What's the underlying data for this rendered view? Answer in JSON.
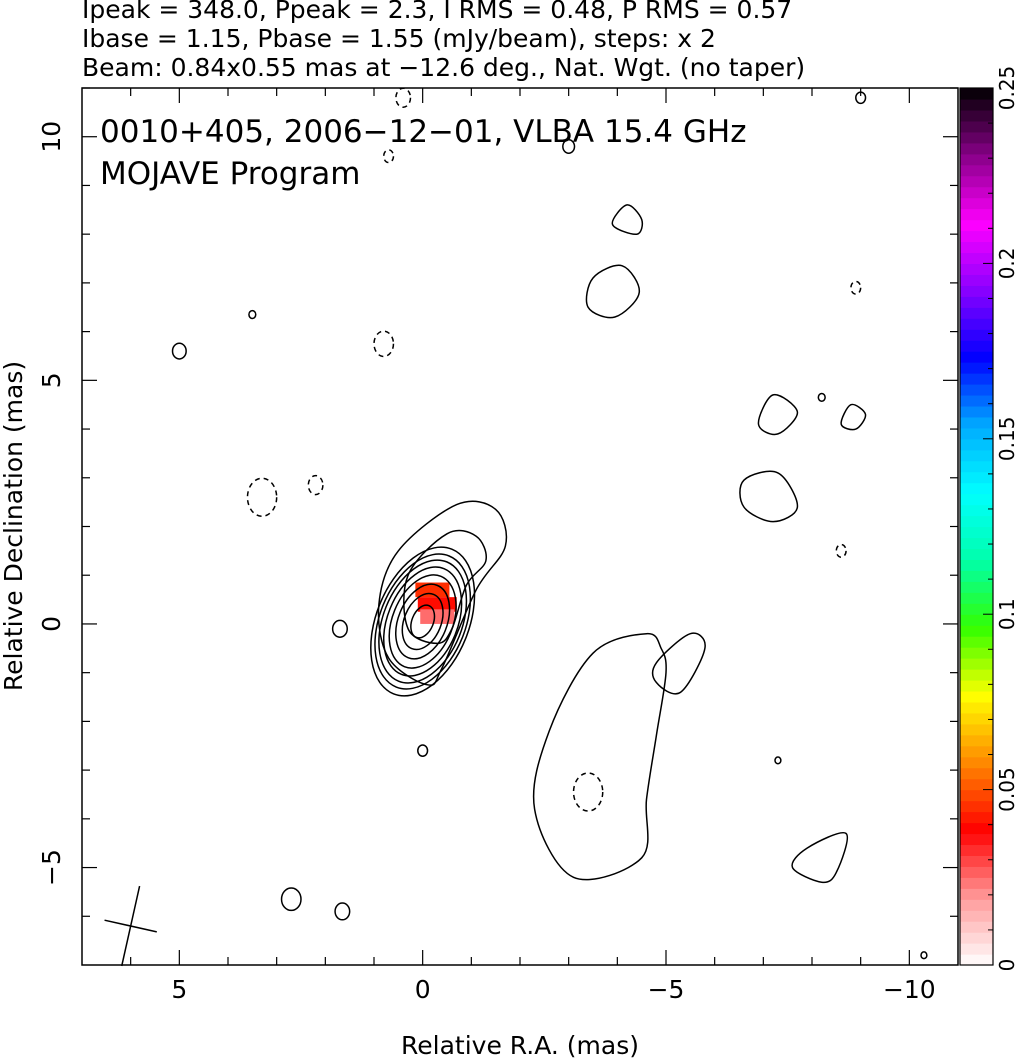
{
  "header": {
    "line1": "Ipeak = 348.0, Ppeak = 2.3, I RMS = 0.48, P RMS = 0.57",
    "line2": "Ibase = 1.15, Pbase = 1.55 (mJy/beam), steps: x 2",
    "line3": "Beam: 0.84x0.55 mas at −12.6 deg., Nat. Wgt. (no taper)"
  },
  "inset": {
    "line1": "0010+405, 2006−12−01, VLBA 15.4 GHz",
    "line2": "MOJAVE Program"
  },
  "chart_data": {
    "type": "contour",
    "xlabel": "Relative R.A. (mas)",
    "ylabel": "Relative Declination (mas)",
    "xlim": [
      7,
      -11
    ],
    "ylim": [
      -7,
      11
    ],
    "x_major_ticks": [
      {
        "value": 5,
        "label": "5"
      },
      {
        "value": 0,
        "label": "0"
      },
      {
        "value": -5,
        "label": "−5"
      },
      {
        "value": -10,
        "label": "−10"
      }
    ],
    "y_major_ticks": [
      {
        "value": 10,
        "label": "10"
      },
      {
        "value": 5,
        "label": "5"
      },
      {
        "value": 0,
        "label": "0"
      },
      {
        "value": -5,
        "label": "−5"
      }
    ],
    "colorbar": {
      "range": [
        0,
        0.25
      ],
      "ticks": [
        {
          "value": 0,
          "label": "0"
        },
        {
          "value": 0.05,
          "label": "0.05"
        },
        {
          "value": 0.1,
          "label": "0.1"
        },
        {
          "value": 0.15,
          "label": "0.15"
        },
        {
          "value": 0.2,
          "label": "0.2"
        },
        {
          "value": 0.25,
          "label": "0.25"
        }
      ],
      "colors": [
        "#ffffff",
        "#ff9a9a",
        "#ff0000",
        "#ff8800",
        "#ffff00",
        "#33ff00",
        "#00ffaa",
        "#00ffff",
        "#00aaff",
        "#0000ff",
        "#8800ff",
        "#ff00ff",
        "#880088",
        "#000000"
      ]
    },
    "core_contours": [
      {
        "rx": 0.22,
        "ry": 0.35
      },
      {
        "rx": 0.38,
        "ry": 0.6
      },
      {
        "rx": 0.5,
        "ry": 0.8
      },
      {
        "rx": 0.62,
        "ry": 1.0
      },
      {
        "rx": 0.72,
        "ry": 1.17
      },
      {
        "rx": 0.81,
        "ry": 1.32
      },
      {
        "rx": 0.88,
        "ry": 1.45
      },
      {
        "rx": 0.95,
        "ry": 1.6
      }
    ],
    "extended_contours": [
      [
        [
          -0.1,
          -1.25
        ],
        [
          0.7,
          -0.7
        ],
        [
          0.9,
          0.4
        ],
        [
          0.5,
          1.5
        ],
        [
          -0.7,
          2.45
        ],
        [
          -1.5,
          2.35
        ],
        [
          -1.7,
          1.6
        ],
        [
          -1.1,
          0.7
        ],
        [
          -0.4,
          -0.9
        ]
      ],
      [
        [
          -0.3,
          -0.4
        ],
        [
          0.3,
          -0.1
        ],
        [
          0.3,
          1.0
        ],
        [
          -0.5,
          1.85
        ],
        [
          -1.1,
          1.8
        ],
        [
          -1.3,
          1.3
        ],
        [
          -0.9,
          0.8
        ],
        [
          -0.6,
          -0.1
        ]
      ],
      [
        [
          -4.8,
          -2.3
        ],
        [
          -5.0,
          -1.0
        ],
        [
          -4.9,
          -0.5
        ],
        [
          -4.6,
          -0.2
        ],
        [
          -3.5,
          -0.6
        ],
        [
          -2.6,
          -2.2
        ],
        [
          -2.3,
          -3.8
        ],
        [
          -3.1,
          -5.2
        ],
        [
          -4.5,
          -4.8
        ],
        [
          -4.6,
          -3.6
        ]
      ],
      [
        [
          -5.3,
          -1.4
        ],
        [
          -5.8,
          -0.5
        ],
        [
          -5.5,
          -0.2
        ],
        [
          -4.8,
          -0.8
        ],
        [
          -4.8,
          -1.2
        ]
      ],
      [
        [
          -3.95,
          6.3
        ],
        [
          -4.45,
          6.8
        ],
        [
          -4.1,
          7.35
        ],
        [
          -3.5,
          7.1
        ],
        [
          -3.4,
          6.5
        ]
      ],
      [
        [
          -4.4,
          8.0
        ],
        [
          -4.5,
          8.3
        ],
        [
          -4.2,
          8.6
        ],
        [
          -3.9,
          8.2
        ]
      ],
      [
        [
          -7.7,
          2.4
        ],
        [
          -7.2,
          2.1
        ],
        [
          -6.6,
          2.4
        ],
        [
          -6.6,
          2.95
        ],
        [
          -7.3,
          3.1
        ]
      ],
      [
        [
          -7.7,
          4.35
        ],
        [
          -7.2,
          4.7
        ],
        [
          -6.9,
          4.1
        ],
        [
          -7.3,
          3.9
        ]
      ],
      [
        [
          -8.6,
          4.1
        ],
        [
          -8.9,
          4.0
        ],
        [
          -9.1,
          4.3
        ],
        [
          -8.8,
          4.5
        ]
      ],
      [
        [
          -8.5,
          -5.1
        ],
        [
          -8.2,
          -5.3
        ],
        [
          -7.6,
          -5.0
        ],
        [
          -7.9,
          -4.6
        ],
        [
          -8.7,
          -4.3
        ]
      ]
    ],
    "small_contours": [
      {
        "x": 5.0,
        "y": 5.6,
        "r": 0.14
      },
      {
        "x": 3.5,
        "y": 6.35,
        "r": 0.07
      },
      {
        "x": 1.7,
        "y": -0.1,
        "r": 0.15
      },
      {
        "x": 2.7,
        "y": -5.65,
        "r": 0.2
      },
      {
        "x": 1.65,
        "y": -5.9,
        "r": 0.15
      },
      {
        "x": -3.0,
        "y": 9.8,
        "r": 0.12
      },
      {
        "x": -9.0,
        "y": 10.8,
        "r": 0.1
      },
      {
        "x": -8.2,
        "y": 4.65,
        "r": 0.07
      },
      {
        "x": -7.3,
        "y": -2.8,
        "r": 0.06
      },
      {
        "x": -10.3,
        "y": -6.8,
        "r": 0.06
      },
      {
        "x": 0.0,
        "y": -2.6,
        "r": 0.1
      }
    ],
    "dashed_contours": [
      {
        "x": -3.4,
        "y": -3.45,
        "r": 0.3
      },
      {
        "x": 3.3,
        "y": 2.6,
        "r": 0.3
      },
      {
        "x": 2.2,
        "y": 2.85,
        "r": 0.15
      },
      {
        "x": 0.8,
        "y": 5.75,
        "r": 0.2
      },
      {
        "x": -8.9,
        "y": 6.9,
        "r": 0.1
      },
      {
        "x": -8.6,
        "y": 1.5,
        "r": 0.1
      },
      {
        "x": 0.7,
        "y": 9.6,
        "r": 0.1
      },
      {
        "x": 0.4,
        "y": 10.8,
        "r": 0.15
      }
    ],
    "polarization_patch": [
      {
        "x": -0.2,
        "y": 0.7,
        "w": 0.7,
        "h": 0.3,
        "c": 0.045
      },
      {
        "x": -0.3,
        "y": 0.4,
        "w": 0.8,
        "h": 0.3,
        "c": 0.04
      },
      {
        "x": -0.3,
        "y": 0.15,
        "w": 0.7,
        "h": 0.3,
        "c": 0.025
      }
    ],
    "beam": {
      "x": 6.0,
      "y": -6.2,
      "major": 0.84,
      "minor": 0.55,
      "pa": -12.6
    }
  }
}
